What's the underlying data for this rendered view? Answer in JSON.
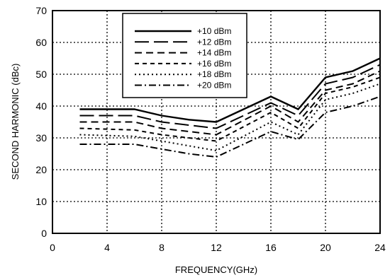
{
  "chart_data": {
    "type": "line",
    "xlabel": "FREQUENCY(GHz)",
    "ylabel": "SECOND HARMONIC (dBc)",
    "xlim": [
      0,
      24
    ],
    "ylim": [
      0,
      70
    ],
    "xticks": [
      0,
      4,
      8,
      12,
      16,
      20,
      24
    ],
    "yticks": [
      0,
      10,
      20,
      30,
      40,
      50,
      60,
      70
    ],
    "grid": true,
    "legend_position": "top-center",
    "series": [
      {
        "name": "+10 dBm",
        "dash": "solid",
        "x": [
          2,
          6,
          8,
          10,
          12,
          16,
          18,
          20,
          22,
          24
        ],
        "y": [
          39,
          39,
          37,
          35.7,
          35,
          43,
          39,
          49,
          51,
          55
        ]
      },
      {
        "name": "+12 dBm",
        "dash": "long-dash",
        "x": [
          2,
          6,
          8,
          10,
          12,
          16,
          18,
          20,
          22,
          24
        ],
        "y": [
          37,
          37,
          35,
          34,
          33,
          41,
          37,
          47,
          49,
          53
        ]
      },
      {
        "name": "+14 dBm",
        "dash": "medium-dash",
        "x": [
          2,
          6,
          8,
          10,
          12,
          16,
          18,
          20,
          22,
          24
        ],
        "y": [
          35,
          35,
          33,
          32,
          31,
          40,
          35,
          45,
          47,
          51
        ]
      },
      {
        "name": "+16 dBm",
        "dash": "short-dash",
        "x": [
          2,
          6,
          8,
          10,
          12,
          16,
          18,
          20,
          22,
          24
        ],
        "y": [
          33,
          32.5,
          31,
          30,
          29,
          38,
          33,
          44,
          46,
          49
        ]
      },
      {
        "name": "+18 dBm",
        "dash": "dotted",
        "x": [
          2,
          6,
          8,
          10,
          12,
          16,
          18,
          20,
          22,
          24
        ],
        "y": [
          31,
          30.5,
          29,
          27.5,
          26,
          35,
          31,
          42,
          44,
          47
        ]
      },
      {
        "name": "+20 dBm",
        "dash": "dash-dot",
        "x": [
          2,
          6,
          8,
          10,
          12,
          16,
          18,
          20,
          22,
          24
        ],
        "y": [
          28,
          28,
          26.5,
          25,
          24,
          32,
          29.5,
          38,
          40,
          43
        ]
      }
    ]
  }
}
